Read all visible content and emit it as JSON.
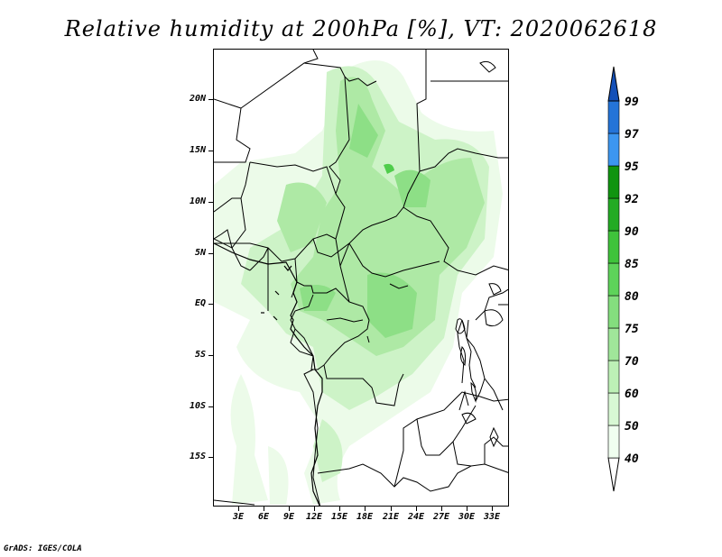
{
  "title": "Relative humidity at 200hPa [%], VT: 2020062618",
  "footer": "GrADS: IGES/COLA",
  "lat_labels": [
    "20N",
    "15N",
    "10N",
    "5N",
    "EQ",
    "5S",
    "10S",
    "15S"
  ],
  "lon_labels": [
    "3E",
    "6E",
    "9E",
    "12E",
    "15E",
    "18E",
    "21E",
    "24E",
    "27E",
    "30E",
    "33E"
  ],
  "colorbar": {
    "levels": [
      "40",
      "50",
      "60",
      "70",
      "75",
      "80",
      "85",
      "90",
      "92",
      "95",
      "97",
      "99"
    ],
    "colors": [
      "#f0fff0",
      "#d8f8d4",
      "#bdf0b6",
      "#a0e69a",
      "#84de7e",
      "#5ed35a",
      "#3fc33b",
      "#23ab24",
      "#109410",
      "#3c96f0",
      "#2474d8",
      "#1450b8"
    ]
  },
  "icons": {
    "map": "map-panel",
    "colorbar_up": "triangle-up-icon",
    "colorbar_down": "triangle-down-icon"
  }
}
